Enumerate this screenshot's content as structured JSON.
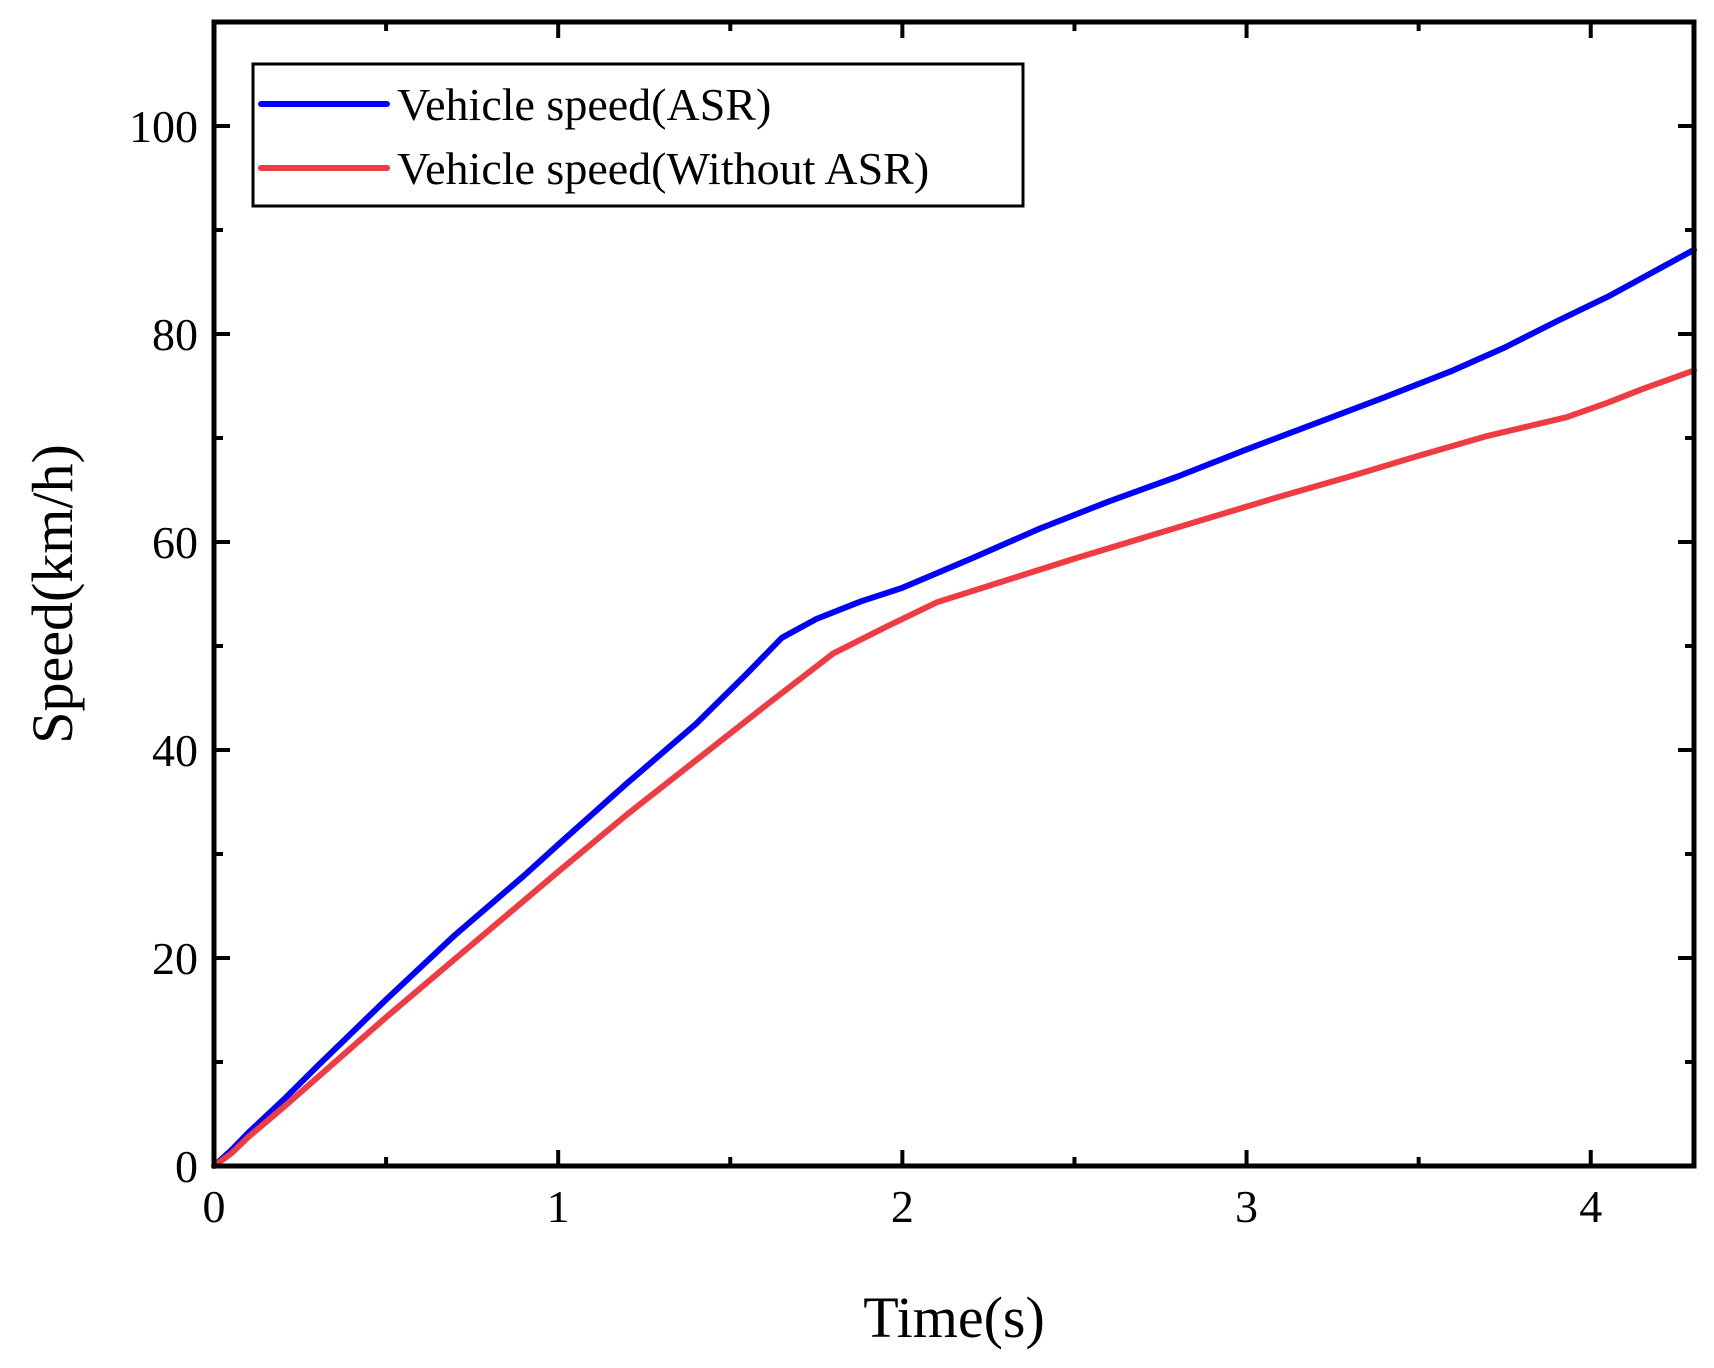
{
  "chart_data": {
    "type": "line",
    "title": "",
    "xlabel": "Time(s)",
    "ylabel": "Speed(km/h)",
    "xlim": [
      0,
      4.3
    ],
    "ylim": [
      0,
      110
    ],
    "x_ticks": [
      0,
      1,
      2,
      3,
      4
    ],
    "x_tick_labels": [
      "0",
      "1",
      "2",
      "3",
      "4"
    ],
    "x_minor_ticks": [
      0.5,
      1.5,
      2.5,
      3.5
    ],
    "y_ticks": [
      0,
      20,
      40,
      60,
      80,
      100
    ],
    "y_tick_labels": [
      "0",
      "20",
      "40",
      "60",
      "80",
      "100"
    ],
    "y_minor_ticks": [
      10,
      30,
      50,
      70,
      90
    ],
    "grid": false,
    "legend_position": "top-left",
    "series": [
      {
        "name": "Vehicle speed(ASR)",
        "color": "#0000ff",
        "x": [
          0,
          0.05,
          0.1,
          0.2,
          0.3,
          0.5,
          0.7,
          0.9,
          1.0,
          1.2,
          1.4,
          1.55,
          1.65,
          1.75,
          1.88,
          2.0,
          2.2,
          2.4,
          2.6,
          2.8,
          3.0,
          3.2,
          3.4,
          3.6,
          3.75,
          3.9,
          4.05,
          4.2,
          4.3
        ],
        "y": [
          0,
          1.5,
          3.2,
          6.3,
          9.6,
          16.0,
          22.2,
          27.9,
          30.9,
          36.8,
          42.5,
          47.4,
          50.8,
          52.6,
          54.3,
          55.6,
          58.4,
          61.3,
          63.9,
          66.3,
          68.9,
          71.4,
          73.9,
          76.5,
          78.7,
          81.2,
          83.6,
          86.3,
          88.1
        ]
      },
      {
        "name": "Vehicle speed(Without ASR)",
        "color": "#ef3c42",
        "x": [
          0,
          0.05,
          0.1,
          0.2,
          0.3,
          0.5,
          0.7,
          0.9,
          1.0,
          1.2,
          1.4,
          1.6,
          1.8,
          1.95,
          2.1,
          2.3,
          2.5,
          2.7,
          2.9,
          3.1,
          3.3,
          3.5,
          3.7,
          3.93,
          4.05,
          4.15,
          4.3
        ],
        "y": [
          0,
          1.2,
          2.8,
          5.6,
          8.5,
          14.3,
          19.9,
          25.5,
          28.3,
          33.8,
          39.0,
          44.2,
          49.3,
          51.8,
          54.2,
          56.3,
          58.4,
          60.4,
          62.4,
          64.4,
          66.3,
          68.3,
          70.2,
          72.0,
          73.4,
          74.7,
          76.5
        ]
      }
    ]
  }
}
